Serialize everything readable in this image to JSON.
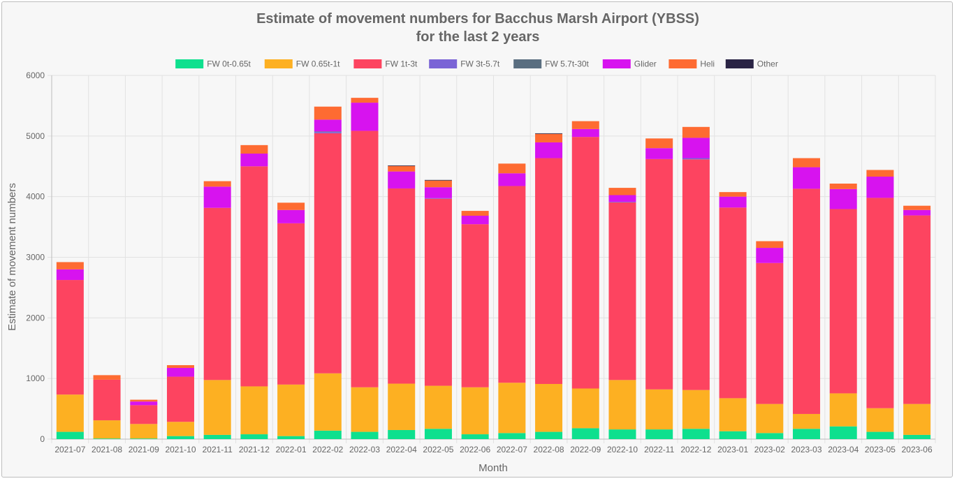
{
  "chart_data": {
    "type": "bar",
    "stacked": true,
    "title": [
      "Estimate of movement numbers for Bacchus Marsh Airport (YBSS)",
      "for the last 2 years"
    ],
    "xlabel": "Month",
    "ylabel": "Estimate of movement numbers",
    "ylim": [
      0,
      6000
    ],
    "yticks": [
      "0",
      "1000",
      "2000",
      "3000",
      "4000",
      "5000",
      "6000"
    ],
    "legend_position": "top",
    "grid": true,
    "categories": [
      "2021-07",
      "2021-08",
      "2021-09",
      "2021-10",
      "2021-11",
      "2021-12",
      "2022-01",
      "2022-02",
      "2022-03",
      "2022-04",
      "2022-05",
      "2022-06",
      "2022-07",
      "2022-08",
      "2022-09",
      "2022-10",
      "2022-11",
      "2022-12",
      "2023-01",
      "2023-02",
      "2023-03",
      "2023-04",
      "2023-05",
      "2023-06"
    ],
    "series": [
      {
        "name": "FW 0t-0.65t",
        "color": "#0ee08e",
        "values": [
          120,
          10,
          10,
          50,
          70,
          80,
          50,
          140,
          120,
          150,
          170,
          80,
          100,
          120,
          180,
          160,
          160,
          170,
          130,
          100,
          170,
          210,
          120,
          70
        ]
      },
      {
        "name": "FW 0.65t-1t",
        "color": "#fdb022",
        "values": [
          615,
          300,
          240,
          235,
          905,
          790,
          850,
          945,
          735,
          765,
          710,
          775,
          830,
          790,
          655,
          815,
          660,
          640,
          545,
          480,
          245,
          545,
          390,
          510
        ]
      },
      {
        "name": "FW 1t-3t",
        "color": "#fd4460",
        "values": [
          1890,
          670,
          310,
          745,
          2840,
          3630,
          2660,
          3960,
          4230,
          3220,
          3085,
          2690,
          3245,
          3725,
          4150,
          2930,
          3800,
          3805,
          3145,
          2325,
          3715,
          3040,
          3470,
          3110
        ]
      },
      {
        "name": "FW 3t-5.7t",
        "color": "#7a64d6",
        "values": [
          0,
          0,
          0,
          0,
          0,
          0,
          0,
          20,
          0,
          0,
          10,
          0,
          0,
          0,
          0,
          10,
          0,
          20,
          0,
          0,
          0,
          0,
          0,
          0
        ]
      },
      {
        "name": "FW 5.7t-30t",
        "color": "#5a6e80",
        "values": [
          0,
          0,
          0,
          0,
          0,
          0,
          0,
          10,
          0,
          0,
          0,
          0,
          0,
          0,
          0,
          0,
          0,
          0,
          0,
          0,
          0,
          0,
          0,
          0
        ]
      },
      {
        "name": "Glider",
        "color": "#d713ef",
        "values": [
          175,
          0,
          60,
          145,
          350,
          210,
          220,
          195,
          465,
          280,
          180,
          140,
          210,
          260,
          130,
          110,
          180,
          335,
          180,
          250,
          355,
          330,
          350,
          90
        ]
      },
      {
        "name": "Heli",
        "color": "#fe6b32",
        "values": [
          120,
          75,
          30,
          45,
          90,
          140,
          120,
          215,
          80,
          90,
          110,
          80,
          160,
          140,
          130,
          120,
          160,
          180,
          75,
          110,
          150,
          90,
          110,
          70
        ]
      },
      {
        "name": "Other",
        "color": "#2a2445",
        "values": [
          0,
          0,
          0,
          0,
          0,
          0,
          0,
          0,
          0,
          10,
          10,
          0,
          0,
          10,
          0,
          0,
          0,
          0,
          0,
          0,
          0,
          0,
          0,
          0
        ]
      }
    ]
  }
}
